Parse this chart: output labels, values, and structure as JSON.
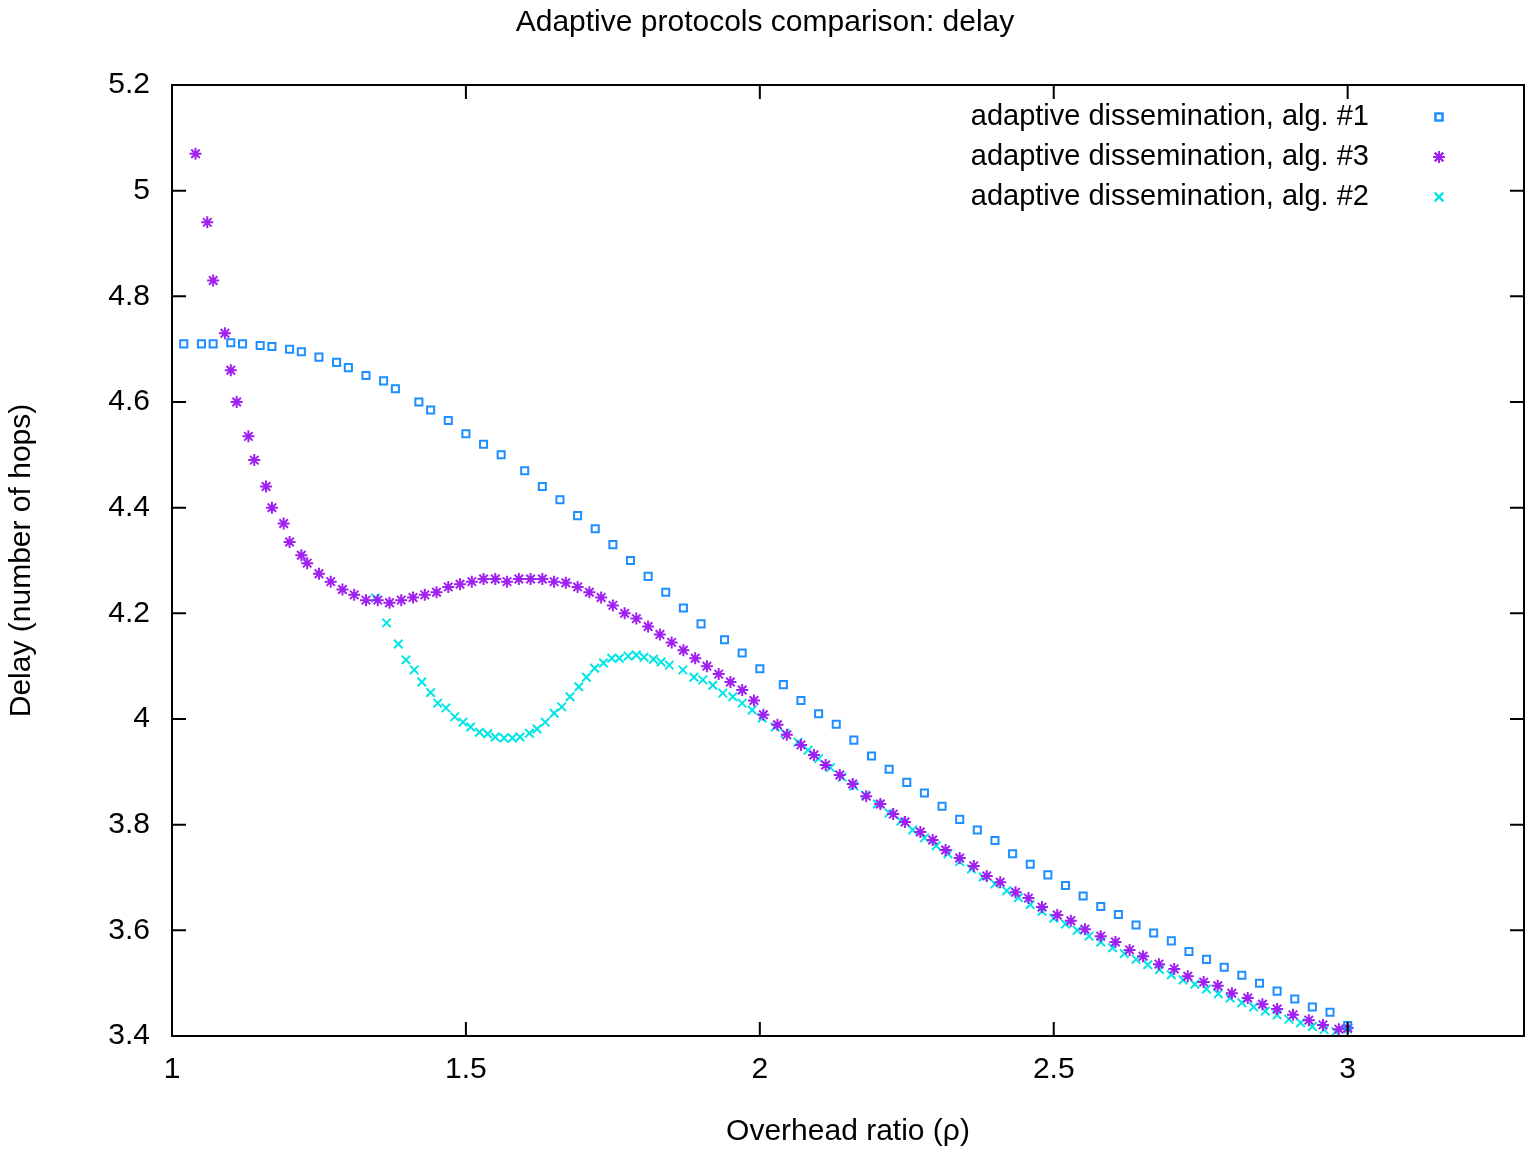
{
  "chart_data": {
    "type": "scatter",
    "title": "Adaptive protocols comparison: delay",
    "xlabel": "Overhead ratio (ρ)",
    "ylabel": "Delay (number of hops)",
    "xlim": [
      1,
      3.3
    ],
    "xticks": [
      1,
      1.5,
      2,
      2.5,
      3
    ],
    "ylim": [
      3.4,
      5.2
    ],
    "yticks": [
      3.4,
      3.6,
      3.8,
      4,
      4.2,
      4.4,
      4.6,
      4.8,
      5,
      5.2
    ],
    "grid": false,
    "legend": "top right",
    "series": [
      {
        "name": "adaptive dissemination, alg. #1",
        "color": "#1e8fff",
        "marker": "square",
        "x": [
          1.02,
          1.05,
          1.07,
          1.1,
          1.12,
          1.15,
          1.17,
          1.2,
          1.22,
          1.25,
          1.28,
          1.3,
          1.33,
          1.36,
          1.38,
          1.42,
          1.44,
          1.47,
          1.5,
          1.53,
          1.56,
          1.6,
          1.63,
          1.66,
          1.69,
          1.72,
          1.75,
          1.78,
          1.81,
          1.84,
          1.87,
          1.9,
          1.94,
          1.97,
          2.0,
          2.04,
          2.07,
          2.1,
          2.13,
          2.16,
          2.19,
          2.22,
          2.25,
          2.28,
          2.31,
          2.34,
          2.37,
          2.4,
          2.43,
          2.46,
          2.49,
          2.52,
          2.55,
          2.58,
          2.61,
          2.64,
          2.67,
          2.7,
          2.73,
          2.76,
          2.79,
          2.82,
          2.85,
          2.88,
          2.91,
          2.94,
          2.97,
          3.0
        ],
        "values": [
          4.71,
          4.71,
          4.71,
          4.712,
          4.71,
          4.707,
          4.705,
          4.7,
          4.695,
          4.685,
          4.675,
          4.665,
          4.65,
          4.64,
          4.625,
          4.6,
          4.585,
          4.565,
          4.54,
          4.52,
          4.5,
          4.47,
          4.44,
          4.415,
          4.385,
          4.36,
          4.33,
          4.3,
          4.27,
          4.24,
          4.21,
          4.18,
          4.15,
          4.125,
          4.095,
          4.065,
          4.035,
          4.01,
          3.99,
          3.96,
          3.93,
          3.905,
          3.88,
          3.86,
          3.835,
          3.81,
          3.79,
          3.77,
          3.745,
          3.725,
          3.705,
          3.685,
          3.665,
          3.645,
          3.63,
          3.61,
          3.595,
          3.58,
          3.56,
          3.545,
          3.53,
          3.515,
          3.5,
          3.485,
          3.47,
          3.455,
          3.445,
          3.42
        ]
      },
      {
        "name": "adaptive dissemination, alg. #3",
        "color": "#a020f0",
        "marker": "cross",
        "x": [
          1.04,
          1.06,
          1.07,
          1.09,
          1.1,
          1.11,
          1.13,
          1.14,
          1.16,
          1.17,
          1.19,
          1.2,
          1.22,
          1.23,
          1.25,
          1.27,
          1.29,
          1.31,
          1.33,
          1.35,
          1.37,
          1.39,
          1.41,
          1.43,
          1.45,
          1.47,
          1.49,
          1.51,
          1.53,
          1.55,
          1.57,
          1.59,
          1.61,
          1.63,
          1.65,
          1.67,
          1.69,
          1.71,
          1.73,
          1.75,
          1.77,
          1.79,
          1.81,
          1.83,
          1.85,
          1.87,
          1.89,
          1.91,
          1.93,
          1.95,
          1.97,
          1.99,
          2.006,
          2.03,
          2.046,
          2.07,
          2.092,
          2.112,
          2.136,
          2.158,
          2.181,
          2.205,
          2.227,
          2.247,
          2.273,
          2.294,
          2.316,
          2.34,
          2.364,
          2.386,
          2.409,
          2.435,
          2.457,
          2.48,
          2.506,
          2.529,
          2.553,
          2.58,
          2.605,
          2.629,
          2.652,
          2.679,
          2.705,
          2.728,
          2.755,
          2.779,
          2.803,
          2.83,
          2.855,
          2.88,
          2.907,
          2.934,
          2.958,
          2.985,
          3.0
        ],
        "values": [
          5.07,
          4.94,
          4.83,
          4.73,
          4.66,
          4.6,
          4.535,
          4.49,
          4.44,
          4.4,
          4.37,
          4.335,
          4.31,
          4.295,
          4.275,
          4.26,
          4.245,
          4.235,
          4.225,
          4.225,
          4.22,
          4.225,
          4.23,
          4.235,
          4.24,
          4.25,
          4.255,
          4.26,
          4.265,
          4.265,
          4.26,
          4.265,
          4.265,
          4.265,
          4.26,
          4.258,
          4.25,
          4.24,
          4.23,
          4.215,
          4.2,
          4.19,
          4.175,
          4.16,
          4.145,
          4.13,
          4.115,
          4.1,
          4.085,
          4.07,
          4.055,
          4.035,
          4.008,
          3.989,
          3.97,
          3.951,
          3.932,
          3.913,
          3.894,
          3.877,
          3.854,
          3.839,
          3.82,
          3.805,
          3.786,
          3.771,
          3.752,
          3.737,
          3.722,
          3.703,
          3.691,
          3.672,
          3.661,
          3.644,
          3.629,
          3.618,
          3.602,
          3.589,
          3.578,
          3.563,
          3.551,
          3.536,
          3.527,
          3.513,
          3.502,
          3.495,
          3.481,
          3.472,
          3.46,
          3.451,
          3.44,
          3.43,
          3.421,
          3.413,
          3.415
        ]
      },
      {
        "name": "adaptive dissemination, alg. #2",
        "color": "#00e5e5",
        "marker": "cross",
        "x": [
          1.346,
          1.365,
          1.385,
          1.398,
          1.412,
          1.425,
          1.44,
          1.452,
          1.466,
          1.481,
          1.495,
          1.508,
          1.523,
          1.537,
          1.55,
          1.565,
          1.579,
          1.592,
          1.608,
          1.621,
          1.635,
          1.65,
          1.663,
          1.677,
          1.692,
          1.705,
          1.719,
          1.734,
          1.748,
          1.761,
          1.776,
          1.79,
          1.803,
          1.819,
          1.832,
          1.846,
          1.869,
          1.888,
          1.903,
          1.92,
          1.937,
          1.954,
          1.97,
          1.987,
          2.004,
          2.026,
          2.043,
          2.065,
          2.082,
          2.1,
          2.12,
          2.14,
          2.16,
          2.18,
          2.2,
          2.22,
          2.24,
          2.26,
          2.28,
          2.3,
          2.32,
          2.34,
          2.36,
          2.38,
          2.4,
          2.42,
          2.44,
          2.46,
          2.48,
          2.5,
          2.52,
          2.54,
          2.56,
          2.58,
          2.6,
          2.62,
          2.64,
          2.66,
          2.68,
          2.7,
          2.72,
          2.74,
          2.76,
          2.78,
          2.8,
          2.82,
          2.84,
          2.86,
          2.88,
          2.9,
          2.92,
          2.94,
          2.96,
          2.98,
          3.0
        ],
        "values": [
          4.229,
          4.182,
          4.142,
          4.112,
          4.093,
          4.07,
          4.05,
          4.03,
          4.021,
          4.004,
          3.994,
          3.985,
          3.975,
          3.972,
          3.966,
          3.964,
          3.964,
          3.966,
          3.973,
          3.981,
          3.994,
          4.011,
          4.023,
          4.042,
          4.061,
          4.079,
          4.096,
          4.106,
          4.115,
          4.115,
          4.119,
          4.121,
          4.117,
          4.113,
          4.108,
          4.102,
          4.093,
          4.079,
          4.074,
          4.064,
          4.049,
          4.042,
          4.03,
          4.017,
          4.002,
          3.985,
          3.973,
          3.956,
          3.941,
          3.925,
          3.908,
          3.89,
          3.873,
          3.856,
          3.839,
          3.822,
          3.807,
          3.79,
          3.775,
          3.76,
          3.745,
          3.73,
          3.716,
          3.701,
          3.688,
          3.675,
          3.662,
          3.649,
          3.636,
          3.623,
          3.612,
          3.6,
          3.589,
          3.578,
          3.567,
          3.556,
          3.545,
          3.535,
          3.526,
          3.516,
          3.506,
          3.498,
          3.489,
          3.48,
          3.472,
          3.463,
          3.455,
          3.447,
          3.44,
          3.432,
          3.425,
          3.418,
          3.412,
          3.408,
          3.413
        ]
      }
    ]
  }
}
